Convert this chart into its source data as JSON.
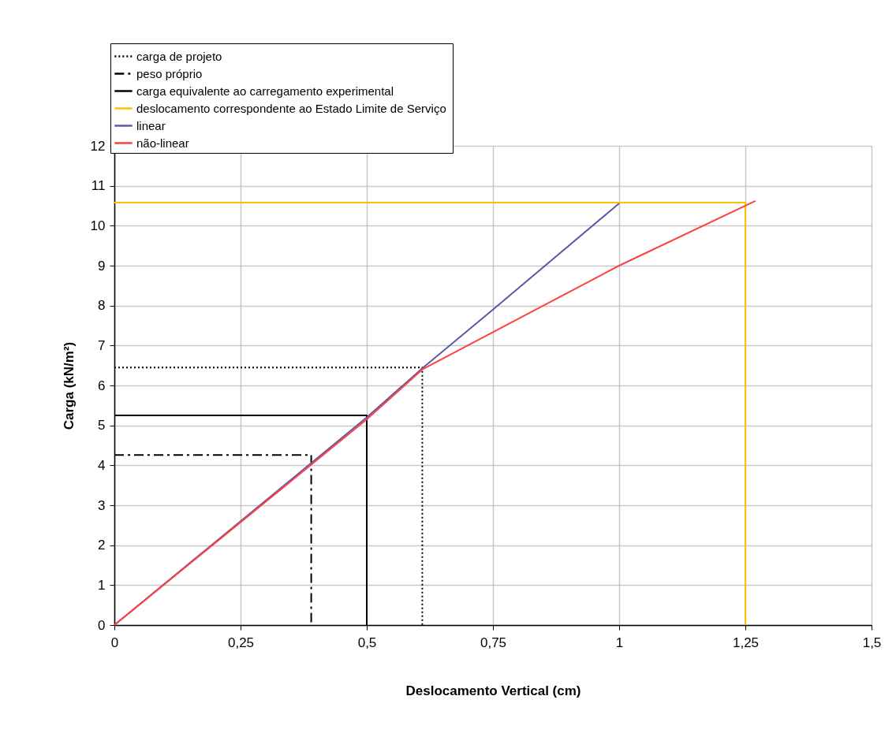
{
  "chart_data": {
    "type": "line",
    "xlabel": "Deslocamento Vertical (cm)",
    "ylabel": "Carga (kN/m²)",
    "xlim": [
      0,
      1.5
    ],
    "xticks": [
      0,
      {
        "value": 0.25,
        "label": "0,25"
      },
      {
        "value": 0.5,
        "label": "0,5"
      },
      {
        "value": 0.75,
        "label": "0,75"
      },
      1,
      {
        "value": 1.25,
        "label": "1,25"
      },
      {
        "value": 1.5,
        "label": "1,5"
      }
    ],
    "ylim": [
      0,
      12
    ],
    "yticks": [
      0,
      1,
      2,
      3,
      4,
      5,
      6,
      7,
      8,
      9,
      10,
      11,
      12
    ],
    "grid": true,
    "legend": "top",
    "marker": "none",
    "series": [
      {
        "name": "carga de projeto",
        "color": "#000000",
        "line_style": "dotted",
        "x": [
          0,
          0.61,
          0.61
        ],
        "values": [
          6.45,
          6.45,
          0
        ]
      },
      {
        "name": "peso próprio",
        "color": "#000000",
        "line_style": "dashdot",
        "x": [
          0,
          0.39,
          0.39
        ],
        "values": [
          4.26,
          4.26,
          0
        ]
      },
      {
        "name": "carga equivalente ao carregamento experimental",
        "color": "#000000",
        "line_style": "solid",
        "x": [
          0,
          0.5,
          0.5
        ],
        "values": [
          5.25,
          5.25,
          0
        ]
      },
      {
        "name": "deslocamento correspondente ao Estado Limite de  Serviço",
        "color": "#ffc000",
        "line_style": "solid",
        "x": [
          0,
          1.25,
          1.25
        ],
        "values": [
          10.58,
          10.58,
          0
        ]
      },
      {
        "name": "linear",
        "color": "#5a5aa6",
        "line_style": "solid",
        "x": [
          0,
          0.5,
          0.61,
          0.75,
          1.0
        ],
        "values": [
          0,
          5.2,
          6.43,
          7.9,
          10.56
        ]
      },
      {
        "name": "não-linear",
        "color": "#ff4040",
        "line_style": "solid",
        "x": [
          0,
          0.5,
          0.61,
          1.0,
          1.27
        ],
        "values": [
          0,
          5.15,
          6.4,
          9.0,
          10.62
        ]
      }
    ]
  }
}
